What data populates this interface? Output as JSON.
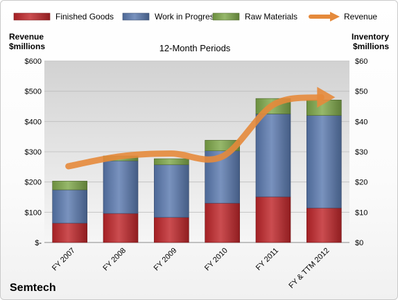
{
  "chart_data": {
    "type": "bar",
    "subtitle": "12-Month Periods",
    "company": "Semtech",
    "left_axis_title": [
      "Revenue",
      "$millions"
    ],
    "right_axis_title": [
      "Inventory",
      "$millions"
    ],
    "left_axis_ticks": [
      "$-",
      "$100",
      "$200",
      "$300",
      "$400",
      "$500",
      "$600"
    ],
    "right_axis_ticks": [
      "$0",
      "$10",
      "$20",
      "$30",
      "$40",
      "$50",
      "$60"
    ],
    "left_ylim": [
      0,
      600
    ],
    "right_ylim": [
      0,
      60
    ],
    "categories": [
      "FY 2007",
      "FY 2008",
      "FY 2009",
      "FY 2010",
      "FY 2011",
      "FY & TTM 2012"
    ],
    "series": [
      {
        "name": "Finished Goods",
        "type": "stacked-bar",
        "axis": "right",
        "color": "#c0262a",
        "values": [
          6.4,
          9.6,
          8.3,
          13.0,
          15.1,
          11.4
        ]
      },
      {
        "name": "Work in Progress",
        "type": "stacked-bar",
        "axis": "right",
        "color": "#5b7ab0",
        "values": [
          11.0,
          17.4,
          17.4,
          17.3,
          27.4,
          30.6
        ]
      },
      {
        "name": "Raw Materials",
        "type": "stacked-bar",
        "axis": "right",
        "color": "#7fa84a",
        "values": [
          2.9,
          1.6,
          2.0,
          3.5,
          5.1,
          5.1
        ]
      },
      {
        "name": "Revenue",
        "type": "line",
        "axis": "left",
        "color": "#e58a3b",
        "values": [
          252,
          285,
          294,
          284,
          455,
          480
        ]
      }
    ],
    "legend_position": "top",
    "grid": true
  }
}
